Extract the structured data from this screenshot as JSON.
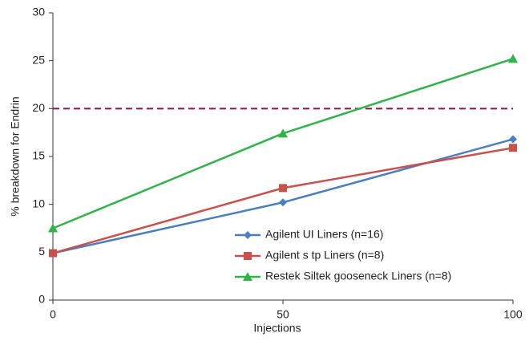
{
  "chart_data": {
    "type": "line",
    "x_label": "Injections",
    "y_label": "% breakdown for Endrin",
    "x": [
      0,
      50,
      100
    ],
    "series": [
      {
        "name": "Agilent UI Liners (n=16)",
        "color": "#4a7ec0",
        "marker": "diamond",
        "values": [
          4.9,
          10.2,
          16.8
        ]
      },
      {
        "name": "Agilent s tp Liners (n=8)",
        "color": "#c8514b",
        "marker": "square",
        "values": [
          4.9,
          11.7,
          15.9
        ]
      },
      {
        "name": "Restek Siltek gooseneck Liners (n=8)",
        "color": "#2fb44a",
        "marker": "triangle",
        "values": [
          7.5,
          17.4,
          25.2
        ]
      }
    ],
    "reference_line": {
      "value": 20,
      "color": "#8b1a3c",
      "dashed": true
    },
    "xlim": [
      0,
      100
    ],
    "xticks": [
      0,
      50,
      100
    ],
    "ylim": [
      0,
      30
    ],
    "yticks": [
      0,
      5,
      10,
      15,
      20,
      25,
      30
    ],
    "grid": false
  }
}
